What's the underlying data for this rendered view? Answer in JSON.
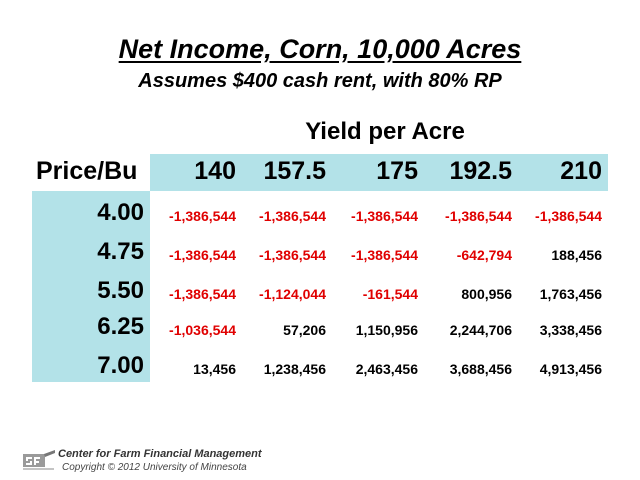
{
  "title": "Net Income, Corn, 10,000 Acres",
  "subtitle": "Assumes $400 cash rent, with 80% RP",
  "table": {
    "yield_label": "Yield per Acre",
    "price_header": "Price/Bu",
    "yields": [
      "140",
      "157.5",
      "175",
      "192.5",
      "210"
    ],
    "prices": [
      "4.00",
      "4.75",
      "5.50",
      "6.25",
      "7.00"
    ],
    "rows": [
      [
        "-1,386,544",
        "-1,386,544",
        "-1,386,544",
        "-1,386,544",
        "-1,386,544"
      ],
      [
        "-1,386,544",
        "-1,386,544",
        "-1,386,544",
        "-642,794",
        "188,456"
      ],
      [
        "-1,386,544",
        "-1,124,044",
        "-161,544",
        "800,956",
        "1,763,456"
      ],
      [
        "-1,036,544",
        "57,206",
        "1,150,956",
        "2,244,706",
        "3,338,456"
      ],
      [
        "13,456",
        "1,238,456",
        "2,463,456",
        "3,688,456",
        "4,913,456"
      ]
    ]
  },
  "colors": {
    "band": "#b3e2e8",
    "negative": "#e00000",
    "positive": "#000000"
  },
  "footer": {
    "logo_icon": "cffm-logo-icon",
    "org_name": "Center for Farm Financial Management",
    "copyright": "Copyright © 2012 University of Minnesota"
  }
}
